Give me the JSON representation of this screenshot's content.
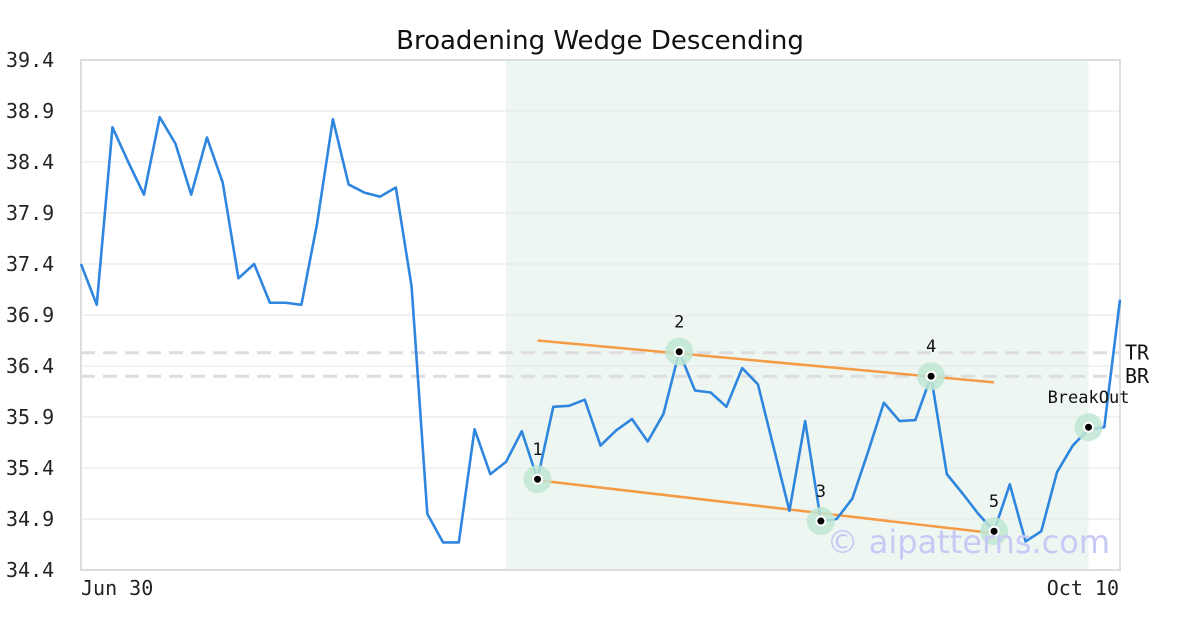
{
  "chart_data": {
    "type": "line",
    "title": "Broadening Wedge Descending",
    "xlabel": "",
    "ylabel": "",
    "ylim": [
      34.4,
      39.4
    ],
    "yticks": [
      "39.4",
      "38.9",
      "38.4",
      "37.9",
      "37.4",
      "36.9",
      "36.4",
      "35.9",
      "35.4",
      "34.9",
      "34.4"
    ],
    "xtick_labels": [
      "Jun 30",
      "Oct 10"
    ],
    "grid": true,
    "series": [
      {
        "color": "#2f86de",
        "values": [
          37.4,
          37.0,
          38.74,
          38.4,
          38.08,
          38.84,
          38.58,
          38.08,
          38.64,
          38.2,
          37.26,
          37.4,
          37.02,
          37.02,
          37.0,
          37.8,
          38.82,
          38.18,
          38.1,
          38.06,
          38.15,
          37.18,
          34.95,
          34.67,
          34.67,
          35.78,
          35.34,
          35.46,
          35.76,
          35.29,
          36.0,
          36.01,
          36.07,
          35.62,
          35.77,
          35.88,
          35.66,
          35.93,
          36.54,
          36.16,
          36.14,
          36.0,
          36.38,
          36.22,
          35.6,
          34.98,
          35.86,
          34.88,
          34.9,
          35.1,
          35.56,
          36.04,
          35.86,
          35.87,
          36.3,
          35.34,
          35.15,
          34.95,
          34.78,
          35.24,
          34.68,
          34.78,
          35.36,
          35.62,
          35.78,
          35.8,
          37.05
        ]
      }
    ],
    "highlight_region": {
      "from_index": 27,
      "to_index": 64,
      "color": "#eef6f2"
    },
    "trendlines": [
      {
        "name": "upper",
        "color": "#f59a45",
        "from": {
          "index": 29,
          "value": 36.65
        },
        "to": {
          "index": 58,
          "value": 36.24
        }
      },
      {
        "name": "lower",
        "color": "#f59a45",
        "from": {
          "index": 29,
          "value": 35.28
        },
        "to": {
          "index": 58,
          "value": 34.76
        }
      }
    ],
    "levels": [
      {
        "label": "TR",
        "value": 36.53,
        "color": "#dddddd"
      },
      {
        "label": "BR",
        "value": 36.3,
        "color": "#dddddd"
      }
    ],
    "pivots": [
      {
        "label": "1",
        "index": 29,
        "value": 35.29
      },
      {
        "label": "2",
        "index": 38,
        "value": 36.54
      },
      {
        "label": "3",
        "index": 47,
        "value": 34.88
      },
      {
        "label": "4",
        "index": 54,
        "value": 36.3
      },
      {
        "label": "5",
        "index": 58,
        "value": 34.78
      },
      {
        "label": "BreakOut",
        "index": 64,
        "value": 35.8
      }
    ],
    "watermark": "© aipatterns.com"
  }
}
